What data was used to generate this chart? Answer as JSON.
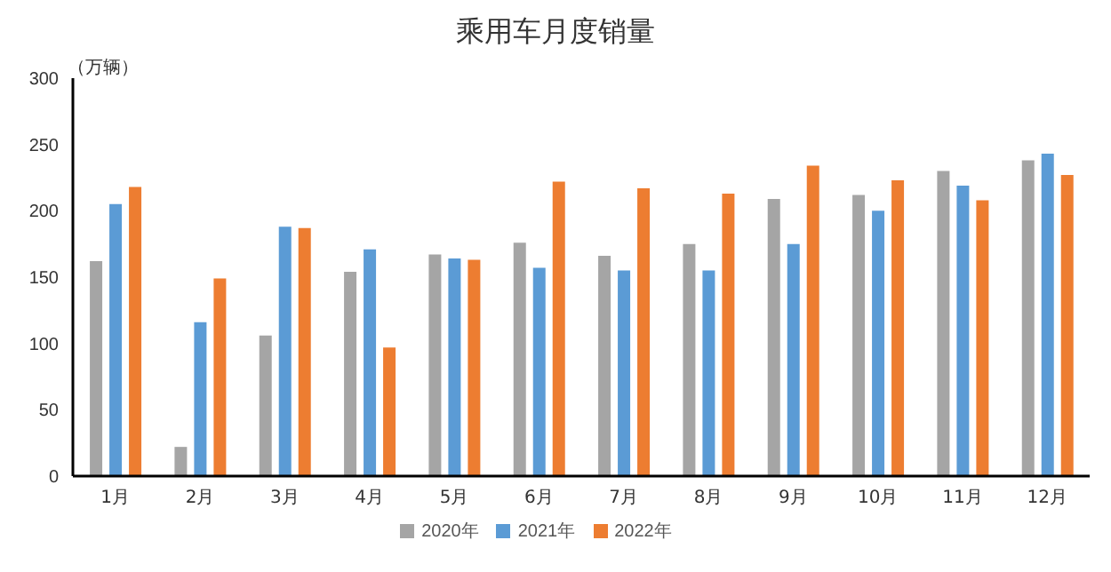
{
  "chart_data": {
    "type": "bar",
    "title": "乘用车月度销量",
    "ylabel": "（万辆）",
    "categories": [
      "1月",
      "2月",
      "3月",
      "4月",
      "5月",
      "6月",
      "7月",
      "8月",
      "9月",
      "10月",
      "11月",
      "12月"
    ],
    "series": [
      {
        "name": "2020年",
        "color": "#a5a5a5",
        "values": [
          162,
          22,
          106,
          154,
          167,
          176,
          166,
          175,
          209,
          212,
          230,
          238
        ]
      },
      {
        "name": "2021年",
        "color": "#5b9bd5",
        "values": [
          205,
          116,
          188,
          171,
          164,
          157,
          155,
          155,
          175,
          200,
          219,
          243
        ]
      },
      {
        "name": "2022年",
        "color": "#ed7d31",
        "values": [
          218,
          149,
          187,
          97,
          163,
          222,
          217,
          213,
          234,
          223,
          208,
          227
        ]
      }
    ],
    "ylim": [
      0,
      300
    ],
    "yticks": [
      0,
      50,
      100,
      150,
      200,
      250,
      300
    ],
    "grid": false,
    "legend": "bottom"
  }
}
